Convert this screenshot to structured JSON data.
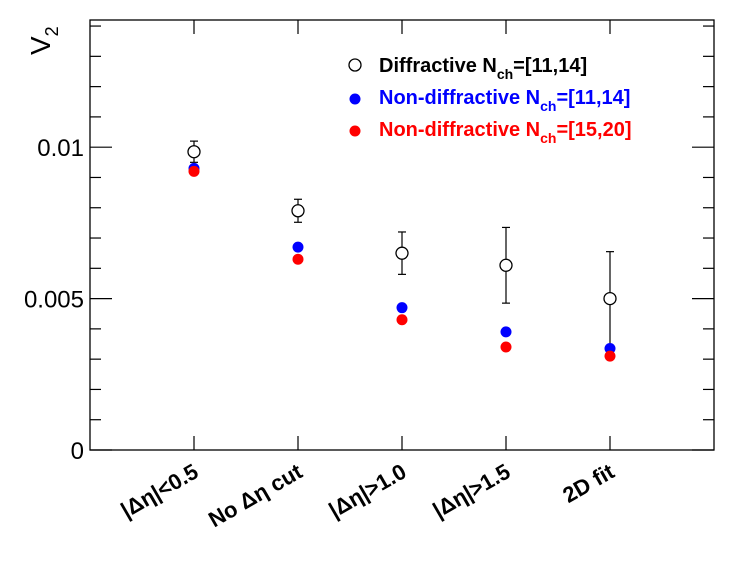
{
  "chart_data": {
    "type": "scatter",
    "title": "",
    "xlabel": "",
    "ylabel": "V",
    "ylabel_sub": "2",
    "ylim": [
      0,
      0.0142
    ],
    "yticks": [
      {
        "value": 0,
        "label": "0"
      },
      {
        "value": 0.005,
        "label": "0.005"
      },
      {
        "value": 0.01,
        "label": "0.01"
      }
    ],
    "categories": [
      {
        "pre": "|Δη|<0.5"
      },
      {
        "pre": "No  Δη cut"
      },
      {
        "pre": "|Δη|>1.0"
      },
      {
        "pre": "|Δη|>1.5"
      },
      {
        "pre": "2D fit"
      }
    ],
    "series": [
      {
        "name": "Diffractive N_ch=[11,14]",
        "legend_main": "Diffractive N",
        "legend_sub": "ch",
        "legend_post": "=[11,14]",
        "color": "#000000",
        "marker": "open-circle",
        "values": [
          0.00985,
          0.0079,
          0.0065,
          0.0061,
          0.005
        ],
        "errors": [
          0.00035,
          0.00038,
          0.0007,
          0.00125,
          0.00155
        ]
      },
      {
        "name": "Non-diffractive N_ch=[11,14]",
        "legend_main": "Non-diffractive N",
        "legend_sub": "ch",
        "legend_post": "=[11,14]",
        "color": "#0000ff",
        "marker": "filled-circle",
        "values": [
          0.0093,
          0.0067,
          0.0047,
          0.0039,
          0.00335
        ]
      },
      {
        "name": "Non-diffractive N_ch=[15,20]",
        "legend_main": "Non-diffractive N",
        "legend_sub": "ch",
        "legend_post": "=[15,20]",
        "color": "#ff0000",
        "marker": "filled-circle",
        "values": [
          0.0092,
          0.0063,
          0.0043,
          0.0034,
          0.0031
        ]
      }
    ],
    "legend_position": "top-right"
  }
}
